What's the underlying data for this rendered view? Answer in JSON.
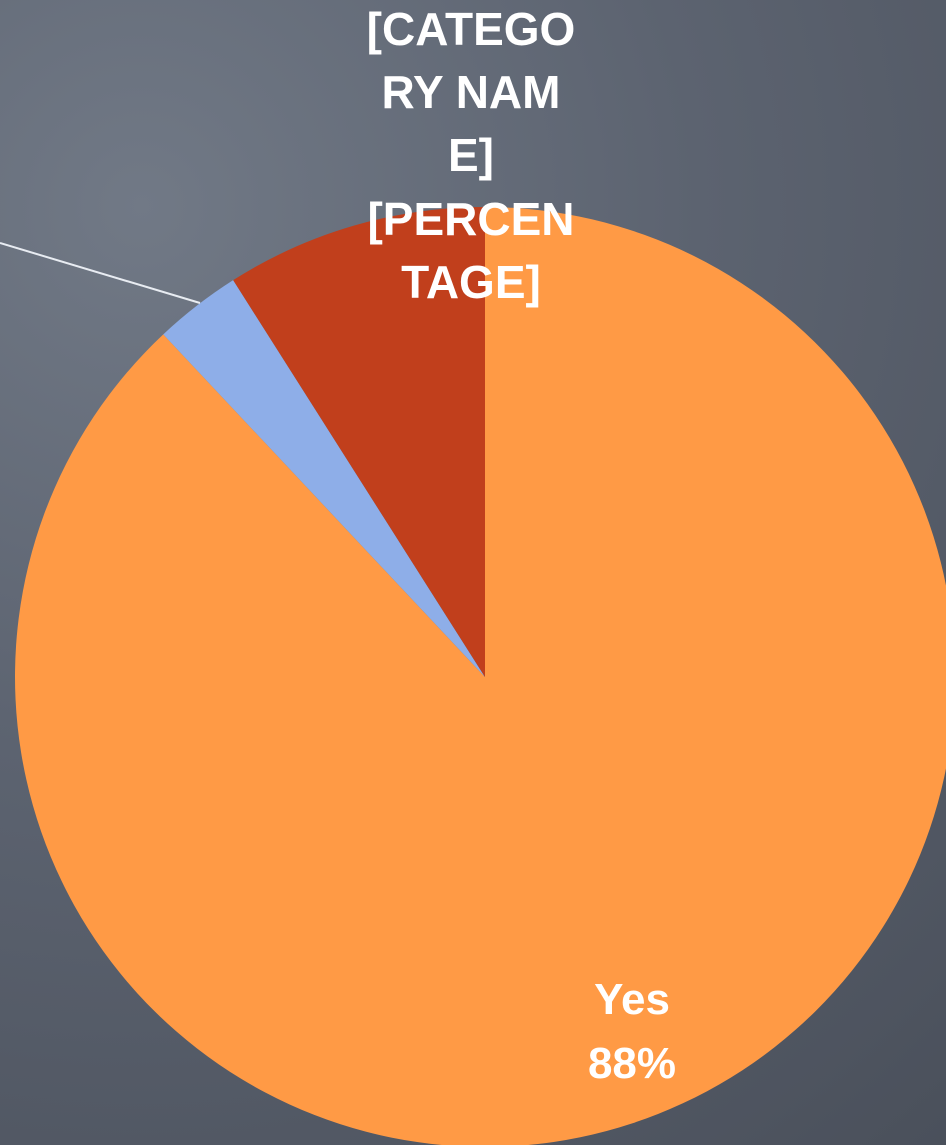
{
  "chart_data": {
    "type": "pie",
    "categories": [
      "Yes",
      null,
      "[CATEGORY NAME]"
    ],
    "values": [
      88,
      3,
      9
    ],
    "value_labels": [
      "88%",
      null,
      "[PERCENTAGE]"
    ],
    "colors": [
      "#ff9a45",
      "#8eaee8",
      "#c13f1c"
    ]
  }
}
